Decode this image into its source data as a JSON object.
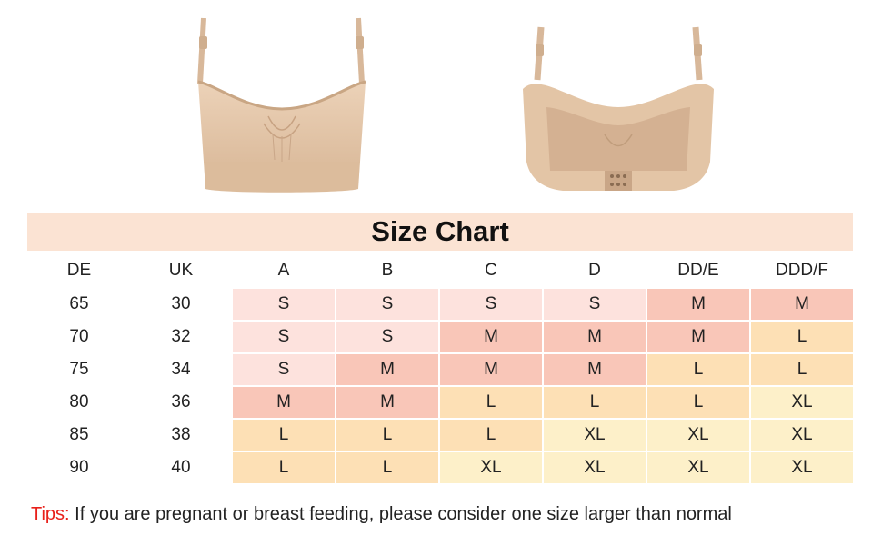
{
  "images": {
    "front": "bra-front-view",
    "back": "bra-back-view"
  },
  "title": "Size Chart",
  "table": {
    "headers": [
      "DE",
      "UK",
      "A",
      "B",
      "C",
      "D",
      "DD/E",
      "DDD/F"
    ],
    "rows": [
      {
        "de": "65",
        "uk": "30",
        "sizes": [
          "S",
          "S",
          "S",
          "S",
          "M",
          "M"
        ]
      },
      {
        "de": "70",
        "uk": "32",
        "sizes": [
          "S",
          "S",
          "M",
          "M",
          "M",
          "L"
        ]
      },
      {
        "de": "75",
        "uk": "34",
        "sizes": [
          "S",
          "M",
          "M",
          "M",
          "L",
          "L"
        ]
      },
      {
        "de": "80",
        "uk": "36",
        "sizes": [
          "M",
          "M",
          "L",
          "L",
          "L",
          "XL"
        ]
      },
      {
        "de": "85",
        "uk": "38",
        "sizes": [
          "L",
          "L",
          "L",
          "XL",
          "XL",
          "XL"
        ]
      },
      {
        "de": "90",
        "uk": "40",
        "sizes": [
          "L",
          "L",
          "XL",
          "XL",
          "XL",
          "XL"
        ]
      }
    ]
  },
  "size_colors": {
    "S": "#fde2dd",
    "M": "#f9c6b8",
    "L": "#fde0b5",
    "XL": "#fdf0c9"
  },
  "tips": {
    "label": "Tips:",
    "text": " If you are pregnant or breast feeding, please consider one size larger than normal"
  }
}
